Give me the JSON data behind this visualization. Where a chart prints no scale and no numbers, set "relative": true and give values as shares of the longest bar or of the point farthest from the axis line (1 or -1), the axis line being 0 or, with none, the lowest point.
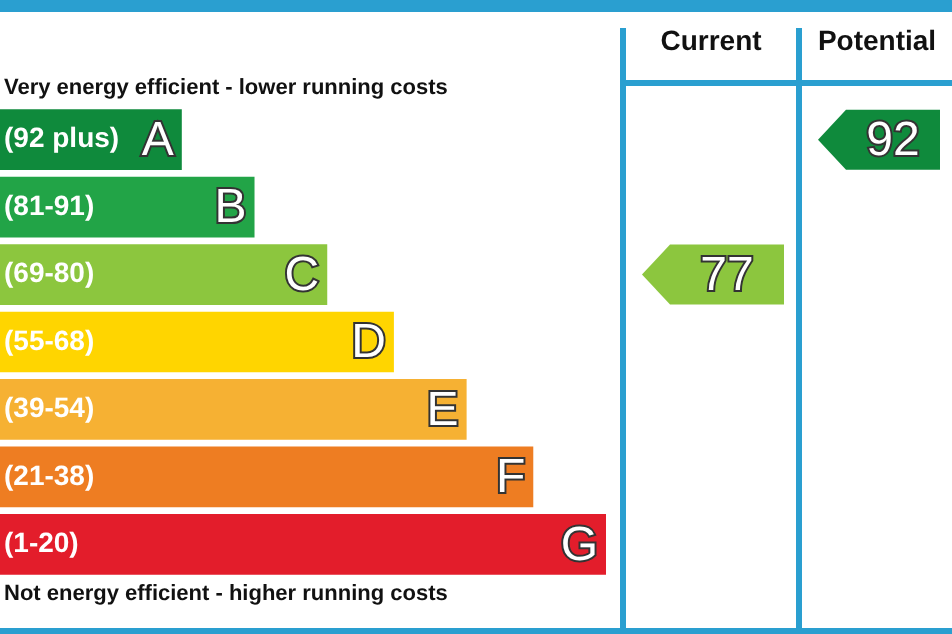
{
  "chart_data": {
    "type": "bar",
    "orientation": "horizontal",
    "relative": true,
    "title": "Very energy efficient - lower running costs",
    "xlabel": "Not energy efficient - higher running costs",
    "categories": [
      "A",
      "B",
      "C",
      "D",
      "E",
      "F",
      "G"
    ],
    "values": [
      0.3,
      0.42,
      0.54,
      0.65,
      0.77,
      0.88,
      1
    ],
    "colors": [
      "#0f8a3c",
      "#22a447",
      "#8cc63e",
      "#ffd500",
      "#f6b133",
      "#ee7d22",
      "#e31d2b"
    ],
    "annotations": [
      "(92 plus)",
      "(81-91)",
      "(69-80)",
      "(55-68)",
      "(39-54)",
      "(21-38)",
      "(1-20)",
      "Current",
      "Potential",
      "77",
      "92"
    ]
  }
}
